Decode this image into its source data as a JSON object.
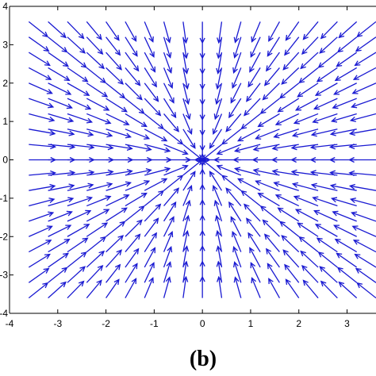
{
  "chart_data": {
    "type": "quiver",
    "title": "",
    "xlabel": "",
    "ylabel": "",
    "xlim": [
      -4,
      3.6
    ],
    "ylim": [
      -4,
      4
    ],
    "x_ticks": [
      "-4",
      "-3",
      "-2",
      "-1",
      "0",
      "1",
      "2",
      "3"
    ],
    "y_ticks": [
      "4",
      "3",
      "2",
      "1",
      "0",
      "-1",
      "-2",
      "-3",
      "-4"
    ],
    "grid": false,
    "field": "inward radial field of constant magnitude, arrows pointing toward the origin (0, 0)",
    "grid_x": [
      -3.6,
      -3.2,
      -2.8,
      -2.4,
      -2.0,
      -1.6,
      -1.2,
      -0.8,
      -0.4,
      0.0,
      0.4,
      0.8,
      1.2,
      1.6,
      2.0,
      2.4,
      2.8,
      3.2,
      3.6
    ],
    "grid_y": [
      -3.6,
      -3.2,
      -2.8,
      -2.4,
      -2.0,
      -1.6,
      -1.2,
      -0.8,
      -0.4,
      0.0,
      0.4,
      0.8,
      1.2,
      1.6,
      2.0,
      2.4,
      2.8,
      3.2,
      3.6
    ],
    "arrow_length": 0.55,
    "arrow_color": "#1a1ad2",
    "caption": "(b)"
  }
}
